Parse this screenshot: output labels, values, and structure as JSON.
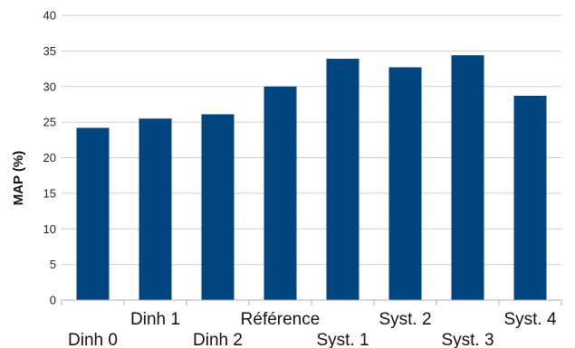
{
  "chart_data": {
    "type": "bar",
    "title": "",
    "xlabel": "",
    "ylabel": "MAP (%)",
    "ylim": [
      0,
      40
    ],
    "yticks": [
      0,
      5,
      10,
      15,
      20,
      25,
      30,
      35,
      40
    ],
    "grid": true,
    "legend": "none",
    "bar_color": "#00457f",
    "categories": [
      "Dinh 0",
      "Dinh 1",
      "Dinh 2",
      "Référence",
      "Syst. 1",
      "Syst. 2",
      "Syst. 3",
      "Syst. 4"
    ],
    "values": [
      24.2,
      25.5,
      26.1,
      30.0,
      33.9,
      32.7,
      34.4,
      28.7
    ]
  }
}
